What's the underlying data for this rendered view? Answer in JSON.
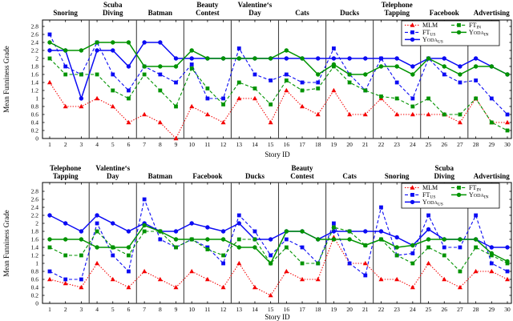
{
  "page": {
    "background": "#ffffff"
  },
  "series_styles": [
    {
      "key": "MLM",
      "label_main": "MLM",
      "label_sub": "",
      "smallcaps": false,
      "color": "#f40000",
      "line": "dotted",
      "marker": "triangle",
      "icon": "red-dotted-triangle-line"
    },
    {
      "key": "FT_US",
      "label_main": "FT",
      "label_sub": "US",
      "smallcaps": false,
      "color": "#0b0bf4",
      "line": "dashed",
      "marker": "square",
      "icon": "blue-dashed-square-line"
    },
    {
      "key": "YODA_US",
      "label_main": "Yoda",
      "label_sub": "US",
      "smallcaps": true,
      "color": "#0b0bf4",
      "line": "solid",
      "marker": "circle",
      "icon": "blue-solid-circle-line"
    },
    {
      "key": "FT_IN",
      "label_main": "FT",
      "label_sub": "IN",
      "smallcaps": false,
      "color": "#009300",
      "line": "dashed",
      "marker": "square",
      "icon": "green-dashed-square-line"
    },
    {
      "key": "YODA_IN",
      "label_main": "Yoda",
      "label_sub": "IN",
      "smallcaps": true,
      "color": "#009300",
      "line": "solid",
      "marker": "circle",
      "icon": "green-solid-circle-line"
    }
  ],
  "legend": {
    "columns": [
      [
        "MLM",
        "FT_US",
        "YODA_US"
      ],
      [
        "FT_IN",
        "YODA_IN"
      ]
    ]
  },
  "chart_data": [
    {
      "type": "line",
      "position": "top",
      "title": "",
      "xlabel": "Story ID",
      "ylabel": "Mean Funniness Grade",
      "ylim": [
        0,
        2.8
      ],
      "ytick_step": 0.2,
      "yticks": [
        "0",
        "0.2",
        "0.4",
        "0.6",
        "0.8",
        "1",
        "1.2",
        "1.4",
        "1.6",
        "1.8",
        "2",
        "2.2",
        "2.4",
        "2.6",
        "2.8"
      ],
      "x": [
        1,
        2,
        3,
        4,
        5,
        6,
        7,
        8,
        9,
        10,
        11,
        12,
        13,
        14,
        15,
        16,
        17,
        18,
        19,
        20,
        21,
        22,
        23,
        24,
        25,
        26,
        27,
        28,
        29,
        30
      ],
      "grid": false,
      "legend_position": "top-right",
      "sections": [
        {
          "label": "Snoring"
        },
        {
          "label": "Scuba\nDiving"
        },
        {
          "label": "Batman"
        },
        {
          "label": "Beauty\nContest"
        },
        {
          "label": "Valentine‘s\nDay"
        },
        {
          "label": "Cats"
        },
        {
          "label": "Ducks"
        },
        {
          "label": "Telephone\nTapping"
        },
        {
          "label": "Facebook"
        },
        {
          "label": "Advertising"
        }
      ],
      "series": [
        {
          "name": "MLM",
          "values": [
            1.4,
            0.8,
            0.8,
            1.0,
            0.8,
            0.4,
            0.6,
            0.4,
            0.0,
            0.8,
            0.6,
            0.4,
            1.0,
            1.0,
            0.4,
            1.2,
            0.8,
            0.6,
            1.2,
            0.6,
            0.6,
            1.0,
            0.6,
            0.6,
            0.6,
            0.6,
            0.4,
            1.0,
            0.4,
            0.4
          ]
        },
        {
          "name": "FT_US",
          "values": [
            2.6,
            1.8,
            1.6,
            2.4,
            1.6,
            1.2,
            1.8,
            1.6,
            1.4,
            1.85,
            1.0,
            1.0,
            2.25,
            1.6,
            1.45,
            1.6,
            1.4,
            1.4,
            2.25,
            1.6,
            1.2,
            2.0,
            1.4,
            1.0,
            2.0,
            1.6,
            1.4,
            1.45,
            1.0,
            0.6
          ]
        },
        {
          "name": "YODA_US",
          "values": [
            2.2,
            2.2,
            1.0,
            2.2,
            2.2,
            1.8,
            2.4,
            2.4,
            2.0,
            2.0,
            2.0,
            2.0,
            2.0,
            2.0,
            2.0,
            2.0,
            2.0,
            2.0,
            2.0,
            2.0,
            2.0,
            2.0,
            2.0,
            1.8,
            2.0,
            2.0,
            1.8,
            2.0,
            1.8,
            1.6
          ]
        },
        {
          "name": "FT_IN",
          "values": [
            2.0,
            1.6,
            1.6,
            1.6,
            1.2,
            1.0,
            1.6,
            1.2,
            0.8,
            1.75,
            1.25,
            0.85,
            1.4,
            1.25,
            0.85,
            1.45,
            1.2,
            1.25,
            1.8,
            1.4,
            1.2,
            1.05,
            1.0,
            0.8,
            1.0,
            0.6,
            0.6,
            1.0,
            0.4,
            0.2
          ]
        },
        {
          "name": "YODA_IN",
          "values": [
            2.4,
            2.2,
            2.2,
            2.4,
            2.4,
            2.4,
            1.8,
            1.8,
            1.8,
            2.2,
            2.0,
            2.0,
            2.0,
            2.0,
            2.0,
            2.2,
            2.0,
            1.6,
            1.85,
            1.6,
            1.6,
            1.8,
            1.8,
            1.6,
            2.0,
            1.8,
            1.6,
            1.8,
            1.8,
            1.6
          ]
        }
      ]
    },
    {
      "type": "line",
      "position": "bottom",
      "title": "",
      "xlabel": "Story ID",
      "ylabel": "Mean Funniness Grade",
      "ylim": [
        0,
        2.8
      ],
      "ytick_step": 0.2,
      "yticks": [
        "0",
        "0.2",
        "0.4",
        "0.6",
        "0.8",
        "1",
        "1.2",
        "1.4",
        "1.6",
        "1.8",
        "2",
        "2.2",
        "2.4",
        "2.6",
        "2.8"
      ],
      "x": [
        1,
        2,
        3,
        4,
        5,
        6,
        7,
        8,
        9,
        10,
        11,
        12,
        13,
        14,
        15,
        16,
        17,
        18,
        19,
        20,
        21,
        22,
        23,
        24,
        25,
        26,
        27,
        28,
        29,
        30
      ],
      "grid": false,
      "legend_position": "top-right",
      "sections": [
        {
          "label": "Telephone\nTapping"
        },
        {
          "label": "Valentine‘s\nDay"
        },
        {
          "label": "Batman"
        },
        {
          "label": "Facebook"
        },
        {
          "label": "Ducks"
        },
        {
          "label": "Beauty\nContest"
        },
        {
          "label": "Cats"
        },
        {
          "label": "Snoring"
        },
        {
          "label": "Scuba\nDiving"
        },
        {
          "label": "Advertising"
        }
      ],
      "series": [
        {
          "name": "MLM",
          "values": [
            0.6,
            0.5,
            0.4,
            1.0,
            0.6,
            0.4,
            0.8,
            0.6,
            0.4,
            0.8,
            0.6,
            0.4,
            1.0,
            0.4,
            0.2,
            0.8,
            0.6,
            0.6,
            1.65,
            1.0,
            1.0,
            0.6,
            0.6,
            0.4,
            1.0,
            0.6,
            0.4,
            0.8,
            0.8,
            0.6
          ]
        },
        {
          "name": "FT_US",
          "values": [
            0.8,
            0.6,
            0.6,
            2.0,
            1.2,
            0.8,
            2.6,
            1.6,
            1.4,
            1.6,
            1.4,
            1.0,
            2.2,
            1.8,
            1.2,
            1.6,
            1.4,
            1.0,
            2.0,
            1.0,
            0.7,
            2.4,
            1.2,
            1.25,
            2.2,
            1.4,
            1.4,
            2.2,
            1.0,
            0.8
          ]
        },
        {
          "name": "YODA_US",
          "values": [
            2.2,
            2.0,
            1.8,
            2.2,
            2.0,
            1.8,
            2.0,
            1.8,
            1.8,
            2.0,
            1.9,
            1.8,
            2.0,
            1.6,
            1.6,
            1.8,
            1.8,
            1.6,
            1.8,
            1.8,
            1.8,
            1.8,
            1.65,
            1.45,
            1.85,
            1.6,
            1.6,
            1.6,
            1.4,
            1.4
          ]
        },
        {
          "name": "FT_IN",
          "values": [
            1.4,
            1.2,
            1.2,
            1.8,
            1.4,
            1.2,
            1.8,
            1.8,
            1.4,
            1.6,
            1.35,
            1.2,
            1.6,
            1.6,
            1.0,
            1.4,
            1.0,
            1.0,
            1.9,
            1.8,
            1.45,
            1.6,
            1.2,
            1.0,
            1.4,
            1.2,
            0.8,
            1.4,
            1.2,
            1.0
          ]
        },
        {
          "name": "YODA_IN",
          "values": [
            1.6,
            1.6,
            1.6,
            1.4,
            1.4,
            1.4,
            1.95,
            1.8,
            1.6,
            1.6,
            1.6,
            1.6,
            1.4,
            1.4,
            1.0,
            1.8,
            1.8,
            1.6,
            1.6,
            1.6,
            1.45,
            1.6,
            1.4,
            1.45,
            1.6,
            1.6,
            1.6,
            1.6,
            1.25,
            1.05
          ]
        }
      ]
    }
  ]
}
